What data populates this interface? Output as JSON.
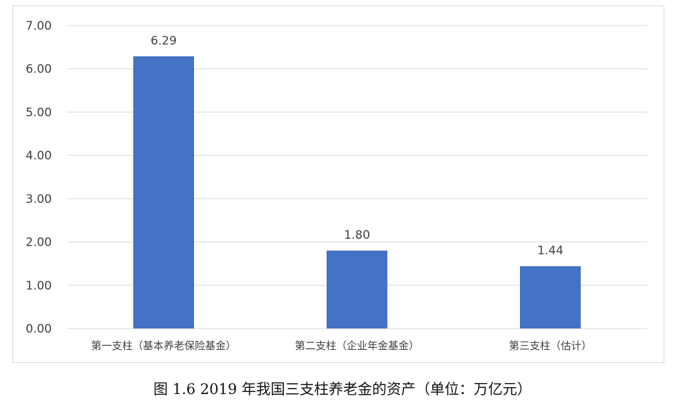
{
  "caption": "图 1.6 2019 年我国三支柱养老金的资产（单位：万亿元）",
  "chart_data": {
    "type": "bar",
    "categories": [
      "第一支柱（基本养老保险基金）",
      "第二支柱（企业年金基金）",
      "第三支柱（估计）"
    ],
    "values": [
      6.29,
      1.8,
      1.44
    ],
    "data_labels": [
      "6.29",
      "1.80",
      "1.44"
    ],
    "ylim": [
      0,
      7
    ],
    "yticks": [
      "0.00",
      "1.00",
      "2.00",
      "3.00",
      "4.00",
      "5.00",
      "6.00",
      "7.00"
    ],
    "grid": true,
    "bar_color": "#4472c4",
    "grid_color": "#d9d9d9",
    "title": "",
    "xlabel": "",
    "ylabel": ""
  }
}
